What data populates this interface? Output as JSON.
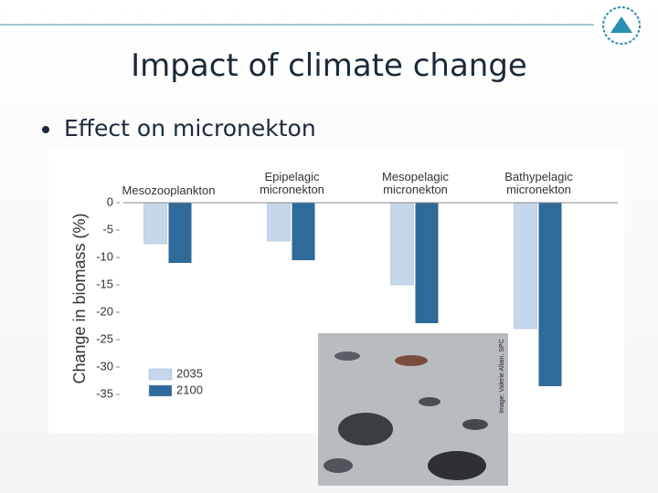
{
  "slide_title": "Impact of climate change",
  "bullet": "Effect on micronekton",
  "image_credit": "Image: Valerie Allain, SPC",
  "chart_data": {
    "type": "bar",
    "y_label": "Change in biomass (%)",
    "categories": [
      "Mesozooplankton",
      "Epipelagic micronekton",
      "Mesopelagic micronekton",
      "Bathypelagic micronekton"
    ],
    "series": [
      {
        "name": "2035",
        "color": "#c6d6eb",
        "values": [
          -7.5,
          -7,
          -15,
          -23
        ]
      },
      {
        "name": "2100",
        "color": "#2e6a9a",
        "values": [
          -11,
          -10.5,
          -22,
          -33.5
        ]
      }
    ],
    "ylim": [
      -35,
      0
    ],
    "yticks": [
      0,
      -5,
      -10,
      -15,
      -20,
      -25,
      -30,
      -35
    ],
    "legend": "bottom-left"
  }
}
